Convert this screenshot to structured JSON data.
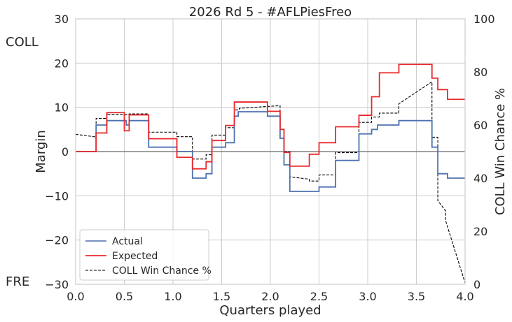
{
  "chart_data": {
    "type": "line",
    "title": "2026 Rd 5 - #AFLPiesFreo",
    "xlabel": "Quarters played",
    "ylabel": "Margin",
    "y2label": "COLL Win Chance %",
    "team_top": "COLL",
    "team_bottom": "FRE",
    "xlim": [
      0,
      4
    ],
    "ylim": [
      -30,
      30
    ],
    "y2lim": [
      0,
      100
    ],
    "x_ticks": [
      "0.0",
      "0.5",
      "1.0",
      "1.5",
      "2.0",
      "2.5",
      "3.0",
      "3.5",
      "4.0"
    ],
    "x_tick_values": [
      0,
      0.5,
      1,
      1.5,
      2,
      2.5,
      3,
      3.5,
      4
    ],
    "y_ticks": [
      "30",
      "20",
      "10",
      "0",
      "−10",
      "−20",
      "−30"
    ],
    "y_tick_values": [
      30,
      20,
      10,
      0,
      -10,
      -20,
      -30
    ],
    "y2_ticks": [
      "100",
      "80",
      "60",
      "40",
      "20",
      "0"
    ],
    "y2_tick_values": [
      100,
      80,
      60,
      40,
      20,
      0
    ],
    "grid": true,
    "legend_position": "lower-left",
    "colors": {
      "actual": "#4c72b0",
      "expected": "#e8282b",
      "win_chance": "#000000",
      "zero_line": "#808080",
      "grid": "#cccccc"
    },
    "series": [
      {
        "name": "Actual",
        "axis": "left",
        "style": "step",
        "color": "#4c72b0",
        "points": [
          [
            0,
            0
          ],
          [
            0.21,
            0
          ],
          [
            0.21,
            6
          ],
          [
            0.32,
            6
          ],
          [
            0.32,
            7
          ],
          [
            0.52,
            7
          ],
          [
            0.52,
            6
          ],
          [
            0.55,
            6
          ],
          [
            0.55,
            7
          ],
          [
            0.75,
            7
          ],
          [
            0.75,
            1
          ],
          [
            1.04,
            1
          ],
          [
            1.04,
            0
          ],
          [
            1.2,
            0
          ],
          [
            1.2,
            -6
          ],
          [
            1.34,
            -6
          ],
          [
            1.34,
            -5
          ],
          [
            1.4,
            -5
          ],
          [
            1.4,
            1
          ],
          [
            1.54,
            1
          ],
          [
            1.54,
            2
          ],
          [
            1.63,
            2
          ],
          [
            1.63,
            8
          ],
          [
            1.67,
            8
          ],
          [
            1.67,
            9
          ],
          [
            1.97,
            9
          ],
          [
            1.97,
            8
          ],
          [
            2.1,
            8
          ],
          [
            2.1,
            3
          ],
          [
            2.14,
            3
          ],
          [
            2.14,
            -3
          ],
          [
            2.2,
            -3
          ],
          [
            2.2,
            -9
          ],
          [
            2.5,
            -9
          ],
          [
            2.5,
            -8
          ],
          [
            2.67,
            -8
          ],
          [
            2.67,
            -2
          ],
          [
            2.91,
            -2
          ],
          [
            2.91,
            4
          ],
          [
            3.04,
            4
          ],
          [
            3.04,
            5
          ],
          [
            3.1,
            5
          ],
          [
            3.1,
            6
          ],
          [
            3.32,
            6
          ],
          [
            3.32,
            7
          ],
          [
            3.66,
            7
          ],
          [
            3.66,
            1
          ],
          [
            3.72,
            1
          ],
          [
            3.72,
            -5
          ],
          [
            3.82,
            -5
          ],
          [
            3.82,
            -6
          ],
          [
            4.0,
            -6
          ]
        ]
      },
      {
        "name": "Expected",
        "axis": "left",
        "style": "step",
        "color": "#e8282b",
        "points": [
          [
            0,
            0
          ],
          [
            0.21,
            0
          ],
          [
            0.21,
            4.2
          ],
          [
            0.32,
            4.2
          ],
          [
            0.32,
            8.8
          ],
          [
            0.5,
            8.8
          ],
          [
            0.5,
            4.7
          ],
          [
            0.55,
            4.7
          ],
          [
            0.55,
            8.3
          ],
          [
            0.75,
            8.3
          ],
          [
            0.75,
            2.9
          ],
          [
            1.04,
            2.9
          ],
          [
            1.04,
            -1.3
          ],
          [
            1.2,
            -1.3
          ],
          [
            1.2,
            -3.9
          ],
          [
            1.34,
            -3.9
          ],
          [
            1.34,
            -2.3
          ],
          [
            1.4,
            -2.3
          ],
          [
            1.4,
            2.5
          ],
          [
            1.54,
            2.5
          ],
          [
            1.54,
            5.9
          ],
          [
            1.63,
            5.9
          ],
          [
            1.63,
            11.2
          ],
          [
            1.97,
            11.2
          ],
          [
            1.97,
            9.1
          ],
          [
            2.1,
            9.1
          ],
          [
            2.1,
            5
          ],
          [
            2.14,
            5
          ],
          [
            2.14,
            -0.2
          ],
          [
            2.2,
            -0.2
          ],
          [
            2.2,
            -3.3
          ],
          [
            2.4,
            -3.3
          ],
          [
            2.4,
            -0.6
          ],
          [
            2.5,
            -0.6
          ],
          [
            2.5,
            2
          ],
          [
            2.67,
            2
          ],
          [
            2.67,
            5.6
          ],
          [
            2.91,
            5.6
          ],
          [
            2.91,
            8.2
          ],
          [
            3.04,
            8.2
          ],
          [
            3.04,
            12.4
          ],
          [
            3.12,
            12.4
          ],
          [
            3.12,
            17.8
          ],
          [
            3.32,
            17.8
          ],
          [
            3.32,
            19.7
          ],
          [
            3.66,
            19.7
          ],
          [
            3.66,
            16.6
          ],
          [
            3.72,
            16.6
          ],
          [
            3.72,
            14
          ],
          [
            3.82,
            14
          ],
          [
            3.82,
            11.8
          ],
          [
            4.0,
            11.8
          ]
        ]
      },
      {
        "name": "COLL Win Chance %",
        "axis": "right",
        "style": "dashed",
        "color": "#000000",
        "points": [
          [
            0,
            56.5
          ],
          [
            0.21,
            55.5
          ],
          [
            0.21,
            62.5
          ],
          [
            0.32,
            62.5
          ],
          [
            0.32,
            64
          ],
          [
            0.55,
            64
          ],
          [
            0.55,
            64.2
          ],
          [
            0.75,
            64.2
          ],
          [
            0.75,
            57.3
          ],
          [
            1.04,
            57.3
          ],
          [
            1.04,
            55.6
          ],
          [
            1.2,
            55.6
          ],
          [
            1.2,
            47.2
          ],
          [
            1.34,
            47.2
          ],
          [
            1.34,
            48.8
          ],
          [
            1.4,
            48.8
          ],
          [
            1.4,
            56.2
          ],
          [
            1.54,
            56.2
          ],
          [
            1.54,
            59
          ],
          [
            1.63,
            59
          ],
          [
            1.63,
            65.7
          ],
          [
            1.68,
            65.7
          ],
          [
            1.68,
            66.3
          ],
          [
            2.1,
            67.3
          ],
          [
            2.1,
            58.4
          ],
          [
            2.14,
            58.4
          ],
          [
            2.14,
            50
          ],
          [
            2.2,
            50
          ],
          [
            2.2,
            40.5
          ],
          [
            2.4,
            39.6
          ],
          [
            2.4,
            38.9
          ],
          [
            2.5,
            38.9
          ],
          [
            2.5,
            41.2
          ],
          [
            2.67,
            41.2
          ],
          [
            2.67,
            49.6
          ],
          [
            2.91,
            49.6
          ],
          [
            2.91,
            61
          ],
          [
            3.04,
            61
          ],
          [
            3.04,
            63
          ],
          [
            3.12,
            63
          ],
          [
            3.12,
            64.5
          ],
          [
            3.32,
            64.5
          ],
          [
            3.32,
            68
          ],
          [
            3.66,
            76.3
          ],
          [
            3.66,
            55.4
          ],
          [
            3.72,
            55.4
          ],
          [
            3.72,
            31.5
          ],
          [
            3.8,
            27.7
          ],
          [
            3.8,
            24
          ],
          [
            4.0,
            0.5
          ]
        ]
      }
    ]
  }
}
